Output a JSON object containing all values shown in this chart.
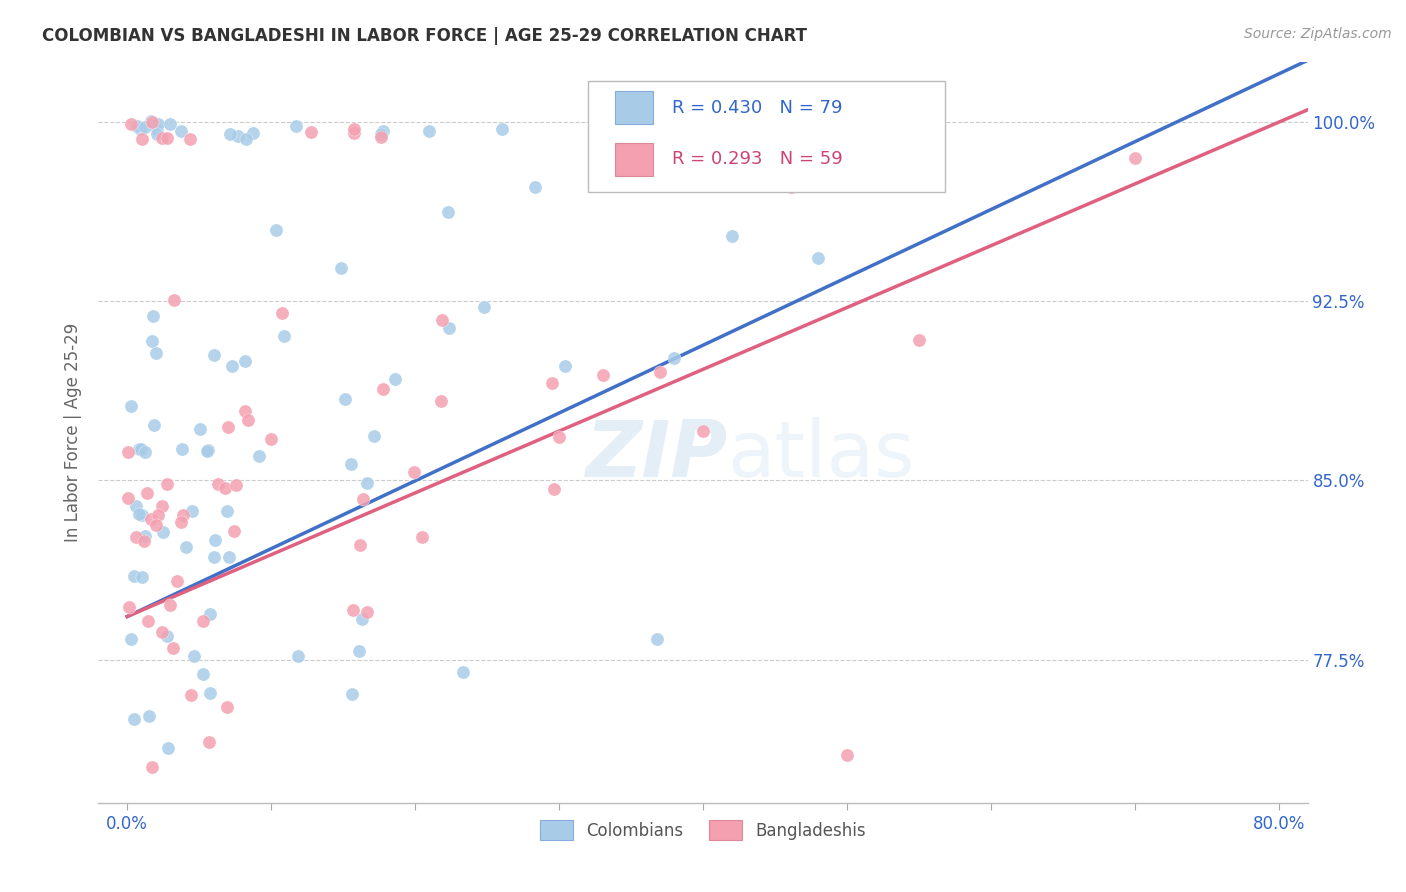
{
  "title": "COLOMBIAN VS BANGLADESHI IN LABOR FORCE | AGE 25-29 CORRELATION CHART",
  "source": "Source: ZipAtlas.com",
  "ylabel": "In Labor Force | Age 25-29",
  "xlim": [
    -2,
    82
  ],
  "ylim": [
    0.715,
    1.025
  ],
  "x_tick_positions": [
    0,
    10,
    20,
    30,
    40,
    50,
    60,
    70,
    80
  ],
  "x_tick_labels": [
    "0.0%",
    "",
    "",
    "",
    "",
    "",
    "",
    "",
    "80.0%"
  ],
  "y_tick_positions": [
    0.775,
    0.85,
    0.925,
    1.0
  ],
  "y_tick_labels": [
    "77.5%",
    "85.0%",
    "92.5%",
    "100.0%"
  ],
  "r_colombian": 0.43,
  "n_colombian": 79,
  "r_bangladeshi": 0.293,
  "n_bangladeshi": 59,
  "colombian_color": "#a8cce8",
  "bangladeshi_color": "#f4a0b0",
  "colombian_line_color": "#4070c8",
  "bangladeshi_line_color": "#e06080",
  "watermark_zip": "ZIP",
  "watermark_atlas": "atlas",
  "legend_label_colombian": "Colombians",
  "legend_label_bangladeshi": "Bangladeshis",
  "title_color": "#333333",
  "source_color": "#999999",
  "axis_label_color": "#3366cc",
  "ylabel_color": "#666666",
  "grid_color": "#cccccc",
  "legend_text_color_col": "#3366cc",
  "legend_text_color_bang": "#cc4477"
}
